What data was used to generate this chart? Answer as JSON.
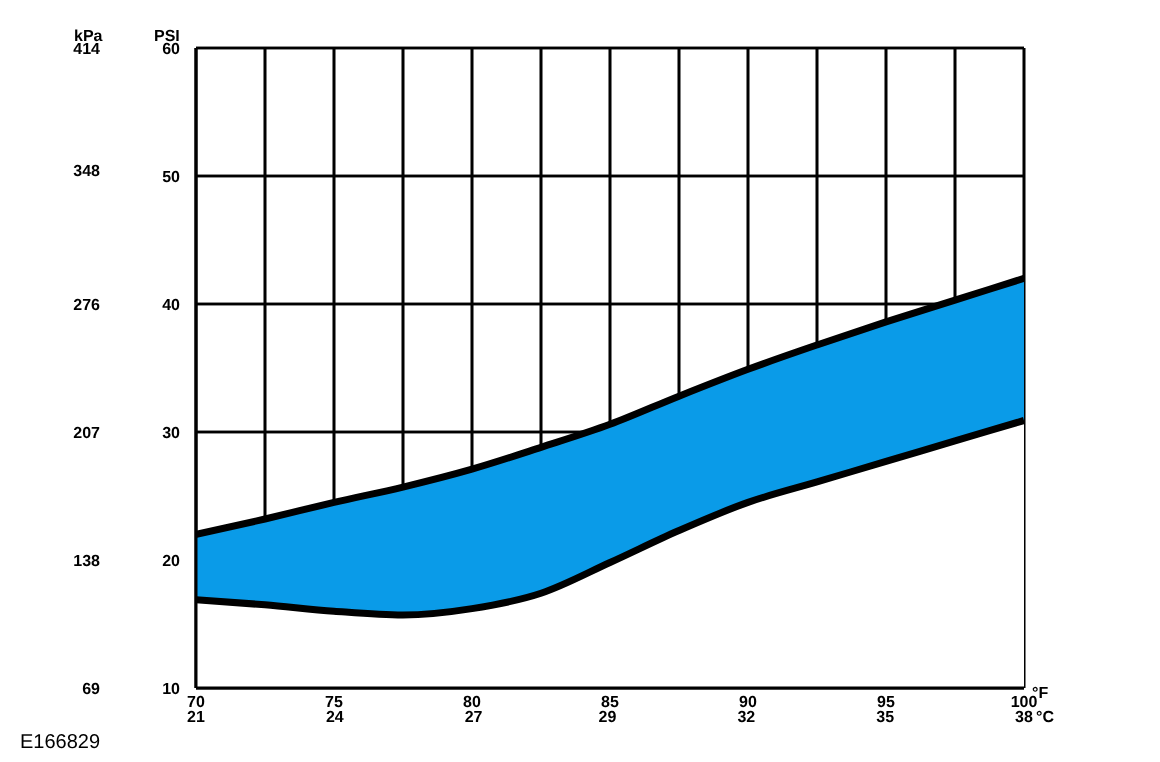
{
  "chart_data": {
    "type": "area",
    "x": [
      70,
      72.5,
      75,
      77.5,
      80,
      82.5,
      85,
      87.5,
      90,
      92.5,
      95,
      97.5,
      100
    ],
    "series": [
      {
        "color": "#0a9be8",
        "values": [
          22.0,
          23.2,
          24.5,
          25.7,
          27.1,
          28.8,
          30.6,
          32.8,
          34.9,
          36.8,
          38.6,
          40.3,
          42.0
        ]
      },
      {
        "color": "#ffffff",
        "values": [
          16.9,
          16.5,
          16.0,
          15.7,
          16.2,
          17.4,
          19.8,
          22.3,
          24.5,
          26.1,
          27.7,
          29.3,
          30.9
        ]
      }
    ],
    "xlim": [
      70,
      100
    ],
    "xticks": [
      70,
      {
        "value": 72.5,
        "label": null
      },
      75,
      {
        "value": 77.5,
        "label": null
      },
      80,
      {
        "value": 82.5,
        "label": null
      },
      85,
      {
        "value": 87.5,
        "label": null
      },
      90,
      {
        "value": 92.5,
        "label": null
      },
      95,
      {
        "value": 97.5,
        "label": null
      },
      100
    ],
    "x2lim": [
      21.1,
      37.8
    ],
    "x2ticks": [
      {
        "value": 21.1,
        "label": "21"
      },
      {
        "value": 23.9,
        "label": "24"
      },
      {
        "value": 26.7,
        "label": "27"
      },
      {
        "value": 29.4,
        "label": "29"
      },
      {
        "value": 32.2,
        "label": "32"
      },
      {
        "value": 35,
        "label": "35"
      },
      {
        "value": 37.8,
        "label": "38"
      }
    ],
    "xlabel": "°F",
    "x2label": "°C",
    "ylim": [
      10,
      60
    ],
    "yticks": [
      10,
      20,
      30,
      40,
      50,
      60
    ],
    "ylabel": "PSI",
    "y2lim": [
      69,
      414
    ],
    "y2ticks": [
      69,
      138,
      207,
      276,
      348,
      414
    ],
    "y2label": "kPa",
    "grid": true,
    "annotations": [
      "E166829"
    ]
  }
}
